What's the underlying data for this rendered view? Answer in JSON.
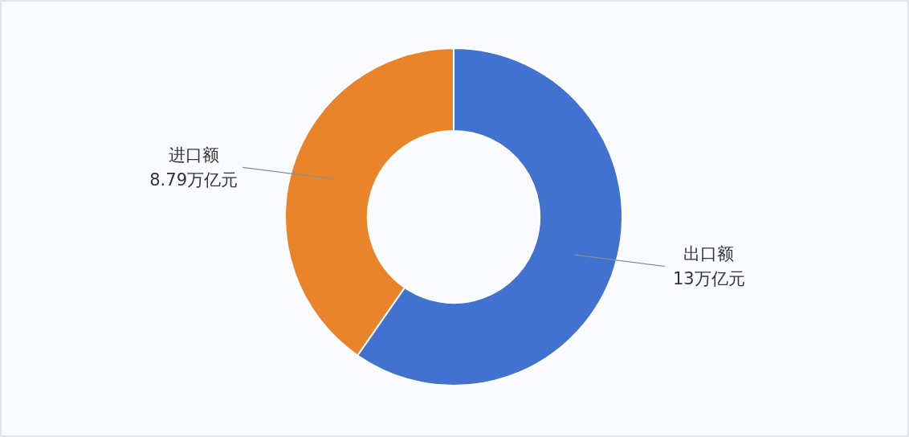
{
  "chart_data": {
    "type": "donut",
    "categories": [
      "出口额",
      "进口额"
    ],
    "values": [
      13,
      8.79
    ],
    "colors": [
      "#4272cf",
      "#ea842b"
    ],
    "value_labels": [
      "13万亿元",
      "8.79万亿元"
    ]
  }
}
